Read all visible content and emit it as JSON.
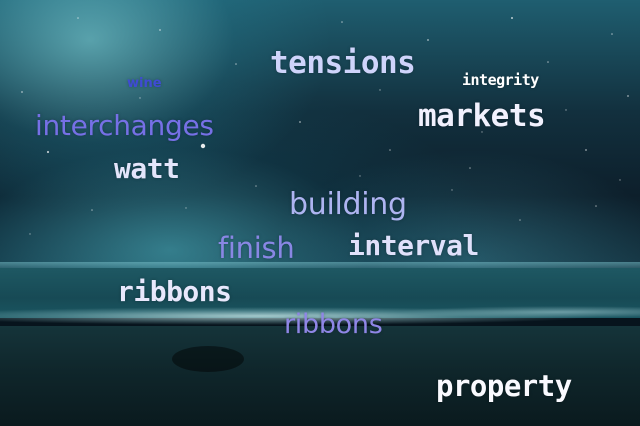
{
  "words": {
    "tensions": "tensions",
    "wine": "wine",
    "integrity": "integrity",
    "interchanges": "interchanges",
    "markets": "markets",
    "watt": "watt",
    "building": "building",
    "finish": "finish",
    "interval": "interval",
    "ribbons_1": "ribbons",
    "ribbons_2": "ribbons",
    "property": "property"
  },
  "colors": {
    "sky_deep": "#0d1f2b",
    "sky_glow": "#1f5e70",
    "sea": "#174a55",
    "beach": "#0f262b",
    "word_white": "#f1f1fe",
    "word_lavender": "#aeb4f1",
    "word_violet": "#7670e6",
    "word_blue": "#3f4bd4"
  }
}
